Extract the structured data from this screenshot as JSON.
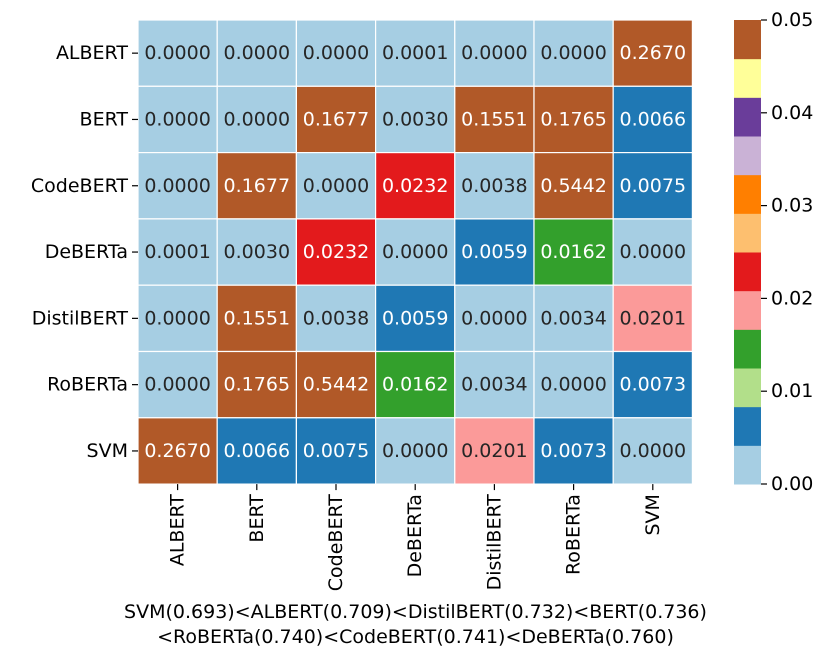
{
  "chart_data": {
    "type": "heatmap",
    "rows": [
      "ALBERT",
      "BERT",
      "CodeBERT",
      "DeBERTa",
      "DistilBERT",
      "RoBERTa",
      "SVM"
    ],
    "columns": [
      "ALBERT",
      "BERT",
      "CodeBERT",
      "DeBERTa",
      "DistilBERT",
      "RoBERTa",
      "SVM"
    ],
    "values": [
      [
        0.0,
        0.0,
        0.0,
        0.0001,
        0.0,
        0.0,
        0.267
      ],
      [
        0.0,
        0.0,
        0.1677,
        0.003,
        0.1551,
        0.1765,
        0.0066
      ],
      [
        0.0,
        0.1677,
        0.0,
        0.0232,
        0.0038,
        0.5442,
        0.0075
      ],
      [
        0.0001,
        0.003,
        0.0232,
        0.0,
        0.0059,
        0.0162,
        0.0
      ],
      [
        0.0,
        0.1551,
        0.0038,
        0.0059,
        0.0,
        0.0034,
        0.0201
      ],
      [
        0.0,
        0.1765,
        0.5442,
        0.0162,
        0.0034,
        0.0,
        0.0073
      ],
      [
        0.267,
        0.0066,
        0.0075,
        0.0,
        0.0201,
        0.0073,
        0.0
      ]
    ],
    "cell_labels": [
      [
        "0.0000",
        "0.0000",
        "0.0000",
        "0.0001",
        "0.0000",
        "0.0000",
        "0.2670"
      ],
      [
        "0.0000",
        "0.0000",
        "0.1677",
        "0.0030",
        "0.1551",
        "0.1765",
        "0.0066"
      ],
      [
        "0.0000",
        "0.1677",
        "0.0000",
        "0.0232",
        "0.0038",
        "0.5442",
        "0.0075"
      ],
      [
        "0.0001",
        "0.0030",
        "0.0232",
        "0.0000",
        "0.0059",
        "0.0162",
        "0.0000"
      ],
      [
        "0.0000",
        "0.1551",
        "0.0038",
        "0.0059",
        "0.0000",
        "0.0034",
        "0.0201"
      ],
      [
        "0.0000",
        "0.1765",
        "0.5442",
        "0.0162",
        "0.0034",
        "0.0000",
        "0.0073"
      ],
      [
        "0.2670",
        "0.0066",
        "0.0075",
        "0.0000",
        "0.0201",
        "0.0073",
        "0.0000"
      ]
    ],
    "colorbar": {
      "vmin": 0.0,
      "vmax": 0.05,
      "ticks": [
        0.0,
        0.01,
        0.02,
        0.03,
        0.04,
        0.05
      ],
      "tick_labels": [
        "0.00",
        "0.01",
        "0.02",
        "0.03",
        "0.04",
        "0.05"
      ],
      "colors": [
        "#a6cee3",
        "#1f78b4",
        "#b2df8a",
        "#33a02c",
        "#fb9a99",
        "#e31a1c",
        "#fdbf6f",
        "#ff7f00",
        "#cab2d6",
        "#6a3d9a",
        "#ffff99",
        "#b15928"
      ]
    },
    "grid_line_color": "#ffffff",
    "light_text_color": "#ffffff",
    "dark_text_color": "#262626"
  },
  "caption": {
    "line1": "SVM(0.693)<ALBERT(0.709)<DistilBERT(0.732)<BERT(0.736)",
    "line2": "<RoBERTa(0.740)<CodeBERT(0.741)<DeBERTa(0.760)"
  }
}
